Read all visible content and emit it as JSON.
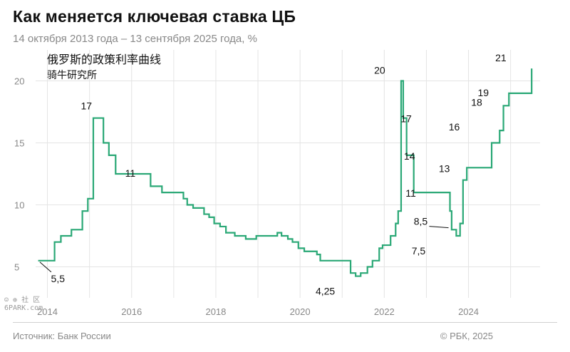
{
  "header": {
    "title": "Как меняется ключевая ставка ЦБ",
    "subtitle": "14 октября 2013 года – 13 сентября 2025 года, %"
  },
  "overlay": {
    "cn_title": "俄罗斯的政策利率曲线",
    "cn_sub": "骑牛研究所"
  },
  "footer": {
    "source": "Источник: Банк России",
    "copyright": "© РБК, 2025"
  },
  "watermark": {
    "line1": "☺ ⊕ 社 区",
    "line2": "6PARK.com"
  },
  "chart_data": {
    "type": "line",
    "step": true,
    "title": "Как меняется ключевая ставка ЦБ",
    "subtitle": "14 октября 2013 года – 13 сентября 2025 года, %",
    "xlim": [
      2013.72,
      2025.7
    ],
    "ylim": [
      2.5,
      22.5
    ],
    "yticks": [
      5,
      10,
      15,
      20
    ],
    "ytick_labels": [
      "5",
      "10",
      "15",
      "20"
    ],
    "xticks": [
      2014,
      2016,
      2018,
      2020,
      2022,
      2024
    ],
    "xtick_labels": [
      "2014",
      "2016",
      "2018",
      "2020",
      "2022",
      "2024"
    ],
    "color": "#2aa876",
    "series": [
      {
        "x": [
          2013.78,
          2014.17,
          2014.32,
          2014.57,
          2014.83,
          2014.96,
          2015.09,
          2015.33,
          2015.46,
          2015.62,
          2016.45,
          2016.72,
          2017.23,
          2017.32,
          2017.46,
          2017.72,
          2017.84,
          2017.96,
          2018.1,
          2018.24,
          2018.45,
          2018.71,
          2018.96,
          2019.46,
          2019.56,
          2019.71,
          2019.82,
          2019.96,
          2020.1,
          2020.4,
          2020.48,
          2021.2,
          2021.32,
          2021.44,
          2021.6,
          2021.72,
          2021.88,
          2021.96,
          2022.15,
          2022.27,
          2022.33,
          2022.4,
          2022.45,
          2022.53,
          2022.7,
          2023.56,
          2023.6,
          2023.71,
          2023.8,
          2023.87,
          2023.96,
          2024.55,
          2024.74,
          2024.83,
          2024.96,
          2025.5
        ],
        "y": [
          5.5,
          7.0,
          7.5,
          8.0,
          9.5,
          10.5,
          17.0,
          15.0,
          14.0,
          12.5,
          11.5,
          11.0,
          10.5,
          10.0,
          9.75,
          9.25,
          9.0,
          8.5,
          8.25,
          7.75,
          7.5,
          7.25,
          7.5,
          7.75,
          7.5,
          7.25,
          7.0,
          6.5,
          6.25,
          6.0,
          5.5,
          4.5,
          4.25,
          4.5,
          5.0,
          5.5,
          6.5,
          6.75,
          7.5,
          8.5,
          9.5,
          20.0,
          17.0,
          14.0,
          11.0,
          9.5,
          8.0,
          7.5,
          8.5,
          12.0,
          13.0,
          15.0,
          16.0,
          18.0,
          19.0,
          21.0
        ]
      }
    ],
    "annotations": [
      {
        "text": "17",
        "x": 2014.96,
        "y": 17
      },
      {
        "text": "11",
        "x": 2015.8,
        "y": 11
      },
      {
        "text": "5,5",
        "x": 2013.78,
        "y": 5.5
      },
      {
        "text": "4,25",
        "x": 2020.6,
        "y": 4.25
      },
      {
        "text": "20",
        "x": 2022.06,
        "y": 20
      },
      {
        "text": "17",
        "x": 2022.15,
        "y": 17
      },
      {
        "text": "14",
        "x": 2022.23,
        "y": 14
      },
      {
        "text": "11",
        "x": 2022.27,
        "y": 11
      },
      {
        "text": "8,5",
        "x": 2023.0,
        "y": 8.5
      },
      {
        "text": "7,5",
        "x": 2022.95,
        "y": 7.5
      },
      {
        "text": "13",
        "x": 2023.46,
        "y": 13
      },
      {
        "text": "16",
        "x": 2024.0,
        "y": 16
      },
      {
        "text": "18",
        "x": 2024.33,
        "y": 18
      },
      {
        "text": "19",
        "x": 2024.52,
        "y": 19
      },
      {
        "text": "21",
        "x": 2024.7,
        "y": 21
      }
    ]
  }
}
